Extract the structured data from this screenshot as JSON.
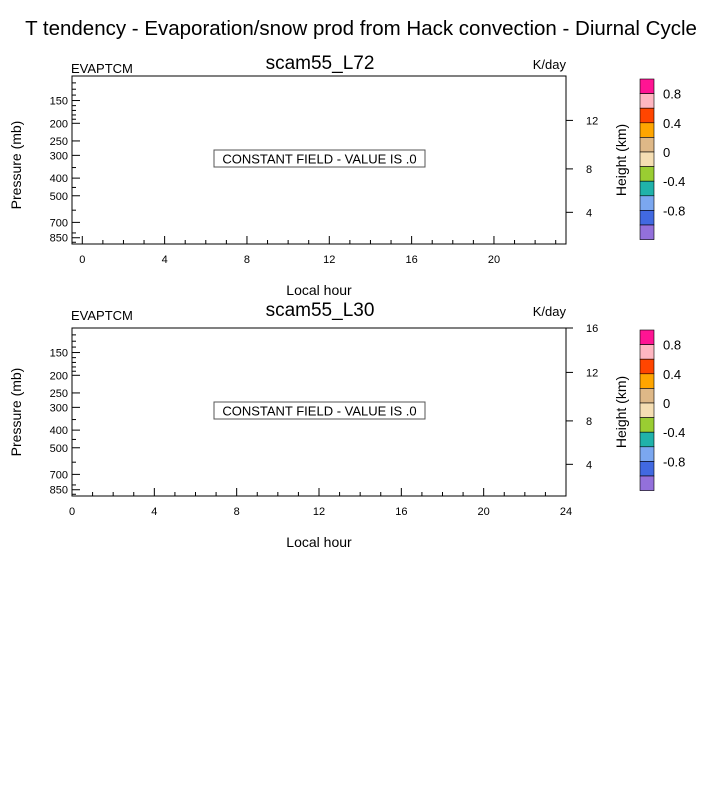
{
  "main_title": "T tendency - Evaporation/snow prod from Hack convection - Diurnal Cycle",
  "panels": [
    {
      "title": "scam55_L72",
      "left_label": "EVAPTCM",
      "right_label": "K/day",
      "center_label": "CONSTANT FIELD - VALUE IS .0",
      "xlabel": "Local hour",
      "ylabel": "Pressure (mb)",
      "right_axis_label": "Height (km)",
      "x_ticks": [
        "0",
        "4",
        "8",
        "12",
        "16",
        "20"
      ],
      "y_ticks": [
        "150",
        "200",
        "250",
        "300",
        "400",
        "500",
        "700",
        "850"
      ],
      "height_ticks": [
        "12",
        "8",
        "4"
      ]
    },
    {
      "title": "scam55_L30",
      "left_label": "EVAPTCM",
      "right_label": "K/day",
      "center_label": "CONSTANT FIELD - VALUE IS .0",
      "xlabel": "Local hour",
      "ylabel": "Pressure (mb)",
      "right_axis_label": "Height (km)",
      "x_ticks": [
        "0",
        "4",
        "8",
        "12",
        "16",
        "20",
        "24"
      ],
      "y_ticks": [
        "150",
        "200",
        "250",
        "300",
        "400",
        "500",
        "700",
        "850"
      ],
      "height_ticks": [
        "16",
        "12",
        "8",
        "4"
      ]
    }
  ],
  "colorbar": {
    "labels": [
      "0.8",
      "0.4",
      "0",
      "-0.4",
      "-0.8"
    ],
    "colors": [
      "#ff1493",
      "#ffb6c1",
      "#ff4500",
      "#ffa500",
      "#deb887",
      "#f5deb3",
      "#9acd32",
      "#20b2aa",
      "#7ba7f0",
      "#4169e1",
      "#9370db"
    ]
  },
  "chart_data": [
    {
      "type": "heatmap",
      "title": "scam55_L72",
      "xlabel": "Local hour",
      "ylabel": "Pressure (mb)",
      "x_ticks": [
        0,
        4,
        8,
        12,
        16,
        20
      ],
      "xlim": [
        -0.5,
        23.5
      ],
      "y_ticks": [
        150,
        200,
        250,
        300,
        400,
        500,
        700,
        850
      ],
      "height_ticks_km": [
        12,
        8,
        4
      ],
      "constant_value": 0.0,
      "units": "K/day",
      "colorbar_levels": [
        0.8,
        0.4,
        0,
        -0.4,
        -0.8
      ]
    },
    {
      "type": "heatmap",
      "title": "scam55_L30",
      "xlabel": "Local hour",
      "ylabel": "Pressure (mb)",
      "x_ticks": [
        0,
        4,
        8,
        12,
        16,
        20,
        24
      ],
      "xlim": [
        0,
        24
      ],
      "y_ticks": [
        150,
        200,
        250,
        300,
        400,
        500,
        700,
        850
      ],
      "height_ticks_km": [
        16,
        12,
        8,
        4
      ],
      "constant_value": 0.0,
      "units": "K/day",
      "colorbar_levels": [
        0.8,
        0.4,
        0,
        -0.4,
        -0.8
      ]
    }
  ]
}
